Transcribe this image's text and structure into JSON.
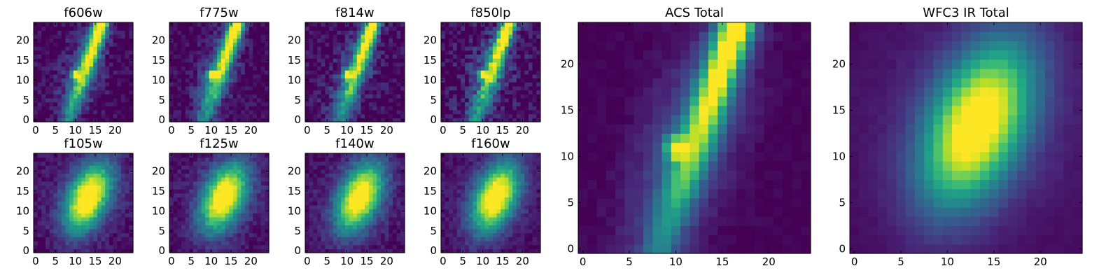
{
  "chart_data": [
    {
      "type": "heatmap",
      "title": "f606w",
      "cmap": "viridis",
      "x_ticks": [
        "0",
        "5",
        "10",
        "15",
        "20"
      ],
      "y_ticks": [
        "0",
        "5",
        "10",
        "15",
        "20"
      ],
      "xlim": [
        -0.5,
        24.5
      ],
      "ylim": [
        -0.5,
        24.5
      ],
      "ridge": "knotty",
      "knot": [
        10,
        11.5
      ],
      "noise": 0.22,
      "peak_offset": 0,
      "grid": false
    },
    {
      "type": "heatmap",
      "title": "f775w",
      "cmap": "viridis",
      "x_ticks": [
        "0",
        "5",
        "10",
        "15",
        "20"
      ],
      "y_ticks": [
        "0",
        "5",
        "10",
        "15",
        "20"
      ],
      "xlim": [
        -0.5,
        24.5
      ],
      "ylim": [
        -0.5,
        24.5
      ],
      "ridge": "knotty",
      "knot": [
        10,
        11.5
      ],
      "noise": 0.2,
      "peak_offset": 0,
      "grid": false
    },
    {
      "type": "heatmap",
      "title": "f814w",
      "cmap": "viridis",
      "x_ticks": [
        "0",
        "5",
        "10",
        "15",
        "20"
      ],
      "y_ticks": [
        "0",
        "5",
        "10",
        "15",
        "20"
      ],
      "xlim": [
        -0.5,
        24.5
      ],
      "ylim": [
        -0.5,
        24.5
      ],
      "ridge": "knotty",
      "knot": [
        10,
        11.5
      ],
      "noise": 0.24,
      "peak_offset": 0,
      "grid": false
    },
    {
      "type": "heatmap",
      "title": "f850lp",
      "cmap": "viridis",
      "x_ticks": [
        "0",
        "5",
        "10",
        "15",
        "20"
      ],
      "y_ticks": [
        "0",
        "5",
        "10",
        "15",
        "20"
      ],
      "xlim": [
        -0.5,
        24.5
      ],
      "ylim": [
        -0.5,
        24.5
      ],
      "ridge": "knotty",
      "knot": [
        10,
        11.5
      ],
      "noise": 0.32,
      "peak_offset": 0,
      "grid": false
    },
    {
      "type": "heatmap",
      "title": "f105w",
      "cmap": "viridis",
      "x_ticks": [
        "0",
        "5",
        "10",
        "15",
        "20"
      ],
      "y_ticks": [
        "0",
        "5",
        "10",
        "15",
        "20"
      ],
      "xlim": [
        -0.5,
        24.5
      ],
      "ylim": [
        -0.5,
        24.5
      ],
      "ridge": "smooth",
      "noise": 0.14,
      "peak_offset": 0,
      "grid": false
    },
    {
      "type": "heatmap",
      "title": "f125w",
      "cmap": "viridis",
      "x_ticks": [
        "0",
        "5",
        "10",
        "15",
        "20"
      ],
      "y_ticks": [
        "0",
        "5",
        "10",
        "15",
        "20"
      ],
      "xlim": [
        -0.5,
        24.5
      ],
      "ylim": [
        -0.5,
        24.5
      ],
      "ridge": "smooth",
      "noise": 0.14,
      "peak_offset": 0,
      "grid": false
    },
    {
      "type": "heatmap",
      "title": "f140w",
      "cmap": "viridis",
      "x_ticks": [
        "0",
        "5",
        "10",
        "15",
        "20"
      ],
      "y_ticks": [
        "0",
        "5",
        "10",
        "15",
        "20"
      ],
      "xlim": [
        -0.5,
        24.5
      ],
      "ylim": [
        -0.5,
        24.5
      ],
      "ridge": "smooth",
      "noise": 0.14,
      "peak_offset": 0,
      "grid": false
    },
    {
      "type": "heatmap",
      "title": "f160w",
      "cmap": "viridis",
      "x_ticks": [
        "0",
        "5",
        "10",
        "15",
        "20"
      ],
      "y_ticks": [
        "0",
        "5",
        "10",
        "15",
        "20"
      ],
      "xlim": [
        -0.5,
        24.5
      ],
      "ylim": [
        -0.5,
        24.5
      ],
      "ridge": "smooth",
      "noise": 0.12,
      "peak_offset": 0,
      "grid": false
    },
    {
      "type": "heatmap",
      "title": "ACS Total",
      "cmap": "viridis",
      "x_ticks": [
        "0",
        "5",
        "10",
        "15",
        "20"
      ],
      "y_ticks": [
        "0",
        "5",
        "10",
        "15",
        "20"
      ],
      "xlim": [
        -0.5,
        24.5
      ],
      "ylim": [
        -0.5,
        24.5
      ],
      "ridge": "knotty",
      "knot": [
        10,
        11
      ],
      "noise": 0.06,
      "peak_offset": 0,
      "grid": false
    },
    {
      "type": "heatmap",
      "title": "WFC3 IR Total",
      "cmap": "viridis",
      "x_ticks": [
        "0",
        "5",
        "10",
        "15",
        "20"
      ],
      "y_ticks": [
        "0",
        "5",
        "10",
        "15",
        "20"
      ],
      "xlim": [
        -0.5,
        24.5
      ],
      "ylim": [
        -0.5,
        24.5
      ],
      "ridge": "smooth",
      "noise": 0.03,
      "peak_offset": 0,
      "grid": false
    }
  ]
}
